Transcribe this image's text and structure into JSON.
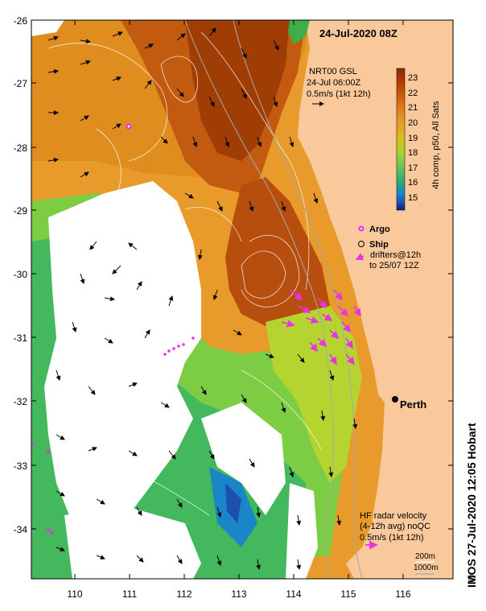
{
  "header": {
    "datetime": "24-Jul-2020 08Z"
  },
  "source_info": {
    "line1": "NRT00 GSL",
    "line2": "24-Jul 06:00Z",
    "line3": "0.5m/s (1kt 12h)"
  },
  "colorbar": {
    "ticks": [
      "23",
      "22",
      "21",
      "20",
      "19",
      "18",
      "17",
      "16",
      "15"
    ],
    "caption": "4h comp, p50, All Sats",
    "colors": [
      "#8a2a00",
      "#b84400",
      "#d9711a",
      "#e89a2a",
      "#d4c21a",
      "#a9d236",
      "#66c452",
      "#2ea77a",
      "#1a86c8",
      "#1c4fb0",
      "#0e1e7a"
    ]
  },
  "axes": {
    "y_ticks": [
      "-26",
      "-27",
      "-28",
      "-29",
      "-30",
      "-31",
      "-32",
      "-33",
      "-34"
    ],
    "x_ticks": [
      "110",
      "111",
      "112",
      "113",
      "114",
      "115",
      "116"
    ]
  },
  "legend": {
    "argo": "Argo",
    "ship": "Ship",
    "drifters_line1": "drifters@12h",
    "drifters_line2": "to 25/07 12Z"
  },
  "city": {
    "name": "Perth"
  },
  "radar_info": {
    "line1": "HF radar velocity",
    "line2": "(4-12h avg) noQC",
    "line3": "0.5m/s (1kt 12h)"
  },
  "bathymetry": {
    "contour1": "200m",
    "contour2": "1000m"
  },
  "credit": "IMOS 27-Jul-2020 12:05 Hobart",
  "copyright_symbol": "©",
  "colors": {
    "land": "#f9c99b",
    "cloud": "#ffffff",
    "arrow": "#000000",
    "drifter": "#e832e8",
    "contour": "#ffffff",
    "bathy": "#a9a9a9"
  }
}
